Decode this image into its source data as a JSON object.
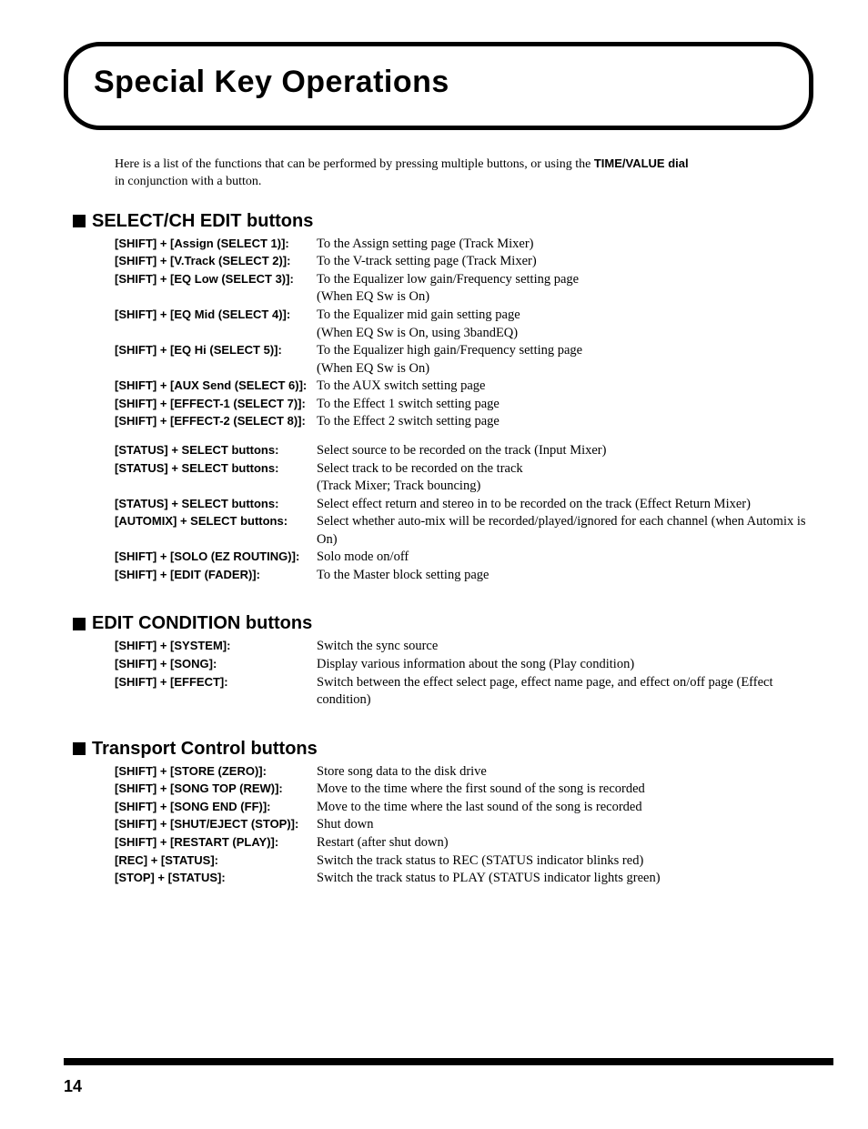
{
  "title": "Special Key Operations",
  "intro_a": "Here is a list of the functions that can be performed by pressing multiple buttons, or using the ",
  "intro_b": "TIME/VALUE dial",
  "intro_c": " in conjunction with a button.",
  "sections": [
    {
      "heading": "SELECT/CH EDIT buttons",
      "groups": [
        [
          {
            "key": "[SHIFT] + [Assign (SELECT 1)]:",
            "desc": "To the Assign setting page (Track Mixer)"
          },
          {
            "key": "[SHIFT] + [V.Track (SELECT 2)]:",
            "desc": "To the V-track setting page (Track Mixer)"
          },
          {
            "key": "[SHIFT] + [EQ Low (SELECT 3)]:",
            "desc": "To the Equalizer low gain/Frequency setting page"
          },
          {
            "key": "",
            "desc": "(When EQ Sw is On)"
          },
          {
            "key": "[SHIFT] + [EQ Mid (SELECT 4)]:",
            "desc": "To the Equalizer mid gain setting page"
          },
          {
            "key": "",
            "desc": "(When EQ Sw is On, using 3bandEQ)"
          },
          {
            "key": "[SHIFT] + [EQ Hi (SELECT 5)]:",
            "desc": "To the Equalizer high gain/Frequency setting page"
          },
          {
            "key": "",
            "desc": "(When EQ Sw is On)"
          },
          {
            "key": "[SHIFT] + [AUX Send (SELECT 6)]:",
            "desc": "To the AUX switch setting page"
          },
          {
            "key": "[SHIFT] + [EFFECT-1 (SELECT 7)]:",
            "desc": "To the Effect 1 switch setting page"
          },
          {
            "key": "[SHIFT] + [EFFECT-2 (SELECT 8)]:",
            "desc": "To the Effect 2 switch setting page"
          }
        ],
        [
          {
            "key": "[STATUS] + SELECT buttons:",
            "desc": "Select source to be recorded on the track (Input Mixer)"
          },
          {
            "key": "[STATUS] + SELECT buttons:",
            "desc": "Select track to be recorded on the track"
          },
          {
            "key": "",
            "desc": "(Track Mixer; Track bouncing)"
          },
          {
            "key": "[STATUS] + SELECT buttons:",
            "desc": "Select effect return and stereo in to be recorded on the track (Effect Return Mixer)"
          },
          {
            "key": "[AUTOMIX] + SELECT buttons:",
            "desc": "Select whether auto-mix will be recorded/played/ignored for each channel (when Automix is On)"
          },
          {
            "key": "[SHIFT] + [SOLO (EZ ROUTING)]:",
            "desc": "Solo mode on/off"
          },
          {
            "key": "[SHIFT] + [EDIT (FADER)]:",
            "desc": "To the Master block setting page"
          }
        ]
      ]
    },
    {
      "heading": "EDIT CONDITION buttons",
      "groups": [
        [
          {
            "key": "[SHIFT] + [SYSTEM]:",
            "desc": "Switch the sync source"
          },
          {
            "key": "[SHIFT] + [SONG]:",
            "desc": "Display various information about the song (Play condition)"
          },
          {
            "key": "[SHIFT] + [EFFECT]:",
            "desc": "Switch between the effect select page, effect name page, and effect on/off page (Effect condition)"
          }
        ]
      ]
    },
    {
      "heading": "Transport Control buttons",
      "groups": [
        [
          {
            "key": "[SHIFT] + [STORE (ZERO)]:",
            "desc": "Store song data to the disk drive"
          },
          {
            "key": "[SHIFT] + [SONG TOP (REW)]:",
            "desc": "Move to the time where the first sound of the song is recorded"
          },
          {
            "key": "[SHIFT] + [SONG END (FF)]:",
            "desc": "Move to the time where the last sound of the song is recorded"
          },
          {
            "key": "[SHIFT] + [SHUT/EJECT (STOP)]:",
            "desc": "Shut down"
          },
          {
            "key": "[SHIFT] + [RESTART (PLAY)]:",
            "desc": "Restart (after shut down)"
          },
          {
            "key": "[REC] + [STATUS]:",
            "desc": "Switch the track status to REC (STATUS indicator blinks red)"
          },
          {
            "key": "[STOP] + [STATUS]:",
            "desc": "Switch the track status to PLAY (STATUS indicator lights green)"
          }
        ]
      ]
    }
  ],
  "page_number": "14"
}
